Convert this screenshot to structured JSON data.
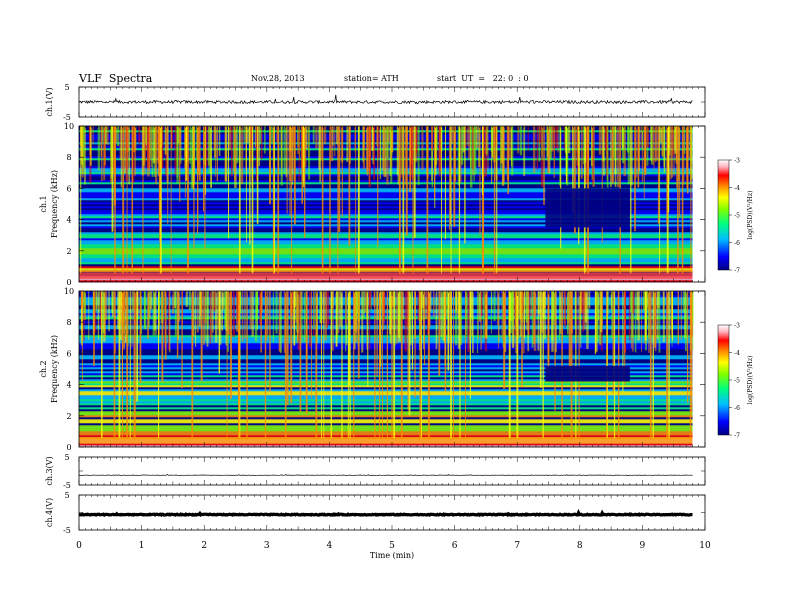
{
  "header": {
    "title": "VLF  Spectra",
    "date": "Nov.28, 2013",
    "station": "station= ATH",
    "start": "start  UT  =   22: 0  : 0"
  },
  "chart_data": [
    {
      "type": "line",
      "panel": "ch1-waveform",
      "ylabel": "ch.1(V)",
      "yticks": [
        "5",
        "-5"
      ],
      "ylim": [
        -5,
        5
      ],
      "xlim": [
        0,
        10
      ],
      "x_extent_min": 9.8,
      "series": [
        {
          "approx_mean_V": 0.0,
          "approx_amplitude_V": 1.0,
          "color": "#000000"
        }
      ]
    },
    {
      "type": "heatmap",
      "panel": "ch1-spectrogram",
      "ylabel": "ch.1\nFrequency  (kHz)",
      "ylabel_top": "ch.1",
      "ylabel_bottom": "Frequency  (kHz)",
      "yticks": [
        "0",
        "2",
        "4",
        "6",
        "8",
        "10"
      ],
      "ylim": [
        0,
        10
      ],
      "xlim": [
        0,
        10
      ],
      "x_extent_min": 9.8,
      "colorbar": {
        "label": "log(PSD)(V²/Hz)",
        "ticks": [
          "-3",
          "-4",
          "-5",
          "-6",
          "-7"
        ],
        "range": [
          -7,
          -3
        ]
      },
      "notable_feature": {
        "x_start_min": 7.45,
        "x_end_min": 8.8,
        "f_low_kHz": 3.5,
        "f_high_kHz": 6.0,
        "level": -7
      }
    },
    {
      "type": "heatmap",
      "panel": "ch2-spectrogram",
      "ylabel": "ch.2\nFrequency  (kHz)",
      "ylabel_top": "ch.2",
      "ylabel_bottom": "Frequency  (kHz)",
      "yticks": [
        "0",
        "2",
        "4",
        "6",
        "8",
        "10"
      ],
      "ylim": [
        0,
        10
      ],
      "xlim": [
        0,
        10
      ],
      "x_extent_min": 9.8,
      "colorbar": {
        "label": "log(PSD)(V²/Hz)",
        "ticks": [
          "-3",
          "-4",
          "-5",
          "-6",
          "-7"
        ],
        "range": [
          -7,
          -3
        ]
      },
      "notable_feature": {
        "x_start_min": 7.45,
        "x_end_min": 8.8,
        "f_low_kHz": 4.2,
        "f_high_kHz": 5.2,
        "level": -6.8
      }
    },
    {
      "type": "line",
      "panel": "ch3-waveform",
      "ylabel": "ch.3(V)",
      "yticks": [
        "5",
        "-5"
      ],
      "ylim": [
        -5,
        5
      ],
      "xlim": [
        0,
        10
      ],
      "x_extent_min": 9.8,
      "series": [
        {
          "approx_mean_V": -1.5,
          "approx_amplitude_V": 0.15,
          "color": "#000000"
        }
      ]
    },
    {
      "type": "line",
      "panel": "ch4-waveform",
      "ylabel": "ch.4(V)",
      "yticks": [
        "5",
        "-5"
      ],
      "ylim": [
        -5,
        5
      ],
      "xlim": [
        0,
        10
      ],
      "x_extent_min": 9.8,
      "series": [
        {
          "approx_mean_V": -0.6,
          "approx_amplitude_V": 0.25,
          "color": "#000000"
        }
      ]
    }
  ],
  "xaxis": {
    "label": "Time  (min)",
    "ticks": [
      "0",
      "1",
      "2",
      "3",
      "4",
      "5",
      "6",
      "7",
      "8",
      "9",
      "10"
    ]
  },
  "palette": [
    "#000080",
    "#0000ff",
    "#00bfff",
    "#00ff7f",
    "#7fff00",
    "#ffff00",
    "#ff8c00",
    "#ff0000",
    "#ffb6c1",
    "#ffffff"
  ]
}
